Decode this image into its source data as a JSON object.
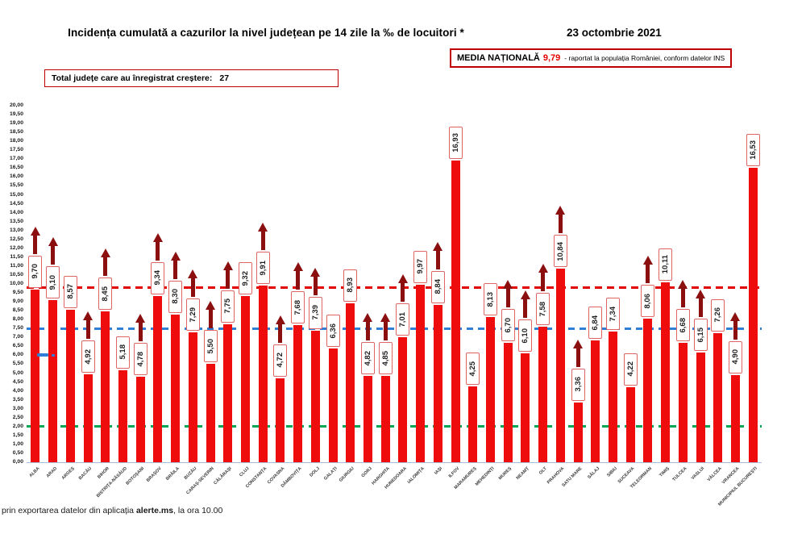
{
  "header": {
    "title": "Incidența cumulată a cazurilor la nivel județean pe 14 zile la ‰ de locuitori *",
    "date": "23 octombrie 2021",
    "national_average": {
      "label": "MEDIA NAȚIONALĂ",
      "value": "9,79",
      "note": "-  raportat la populația României, conform datelor INS"
    },
    "increase_total": {
      "label": "Total județe care au înregistrat creștere:",
      "value": "27"
    }
  },
  "footer": {
    "prefix": "prin exportarea datelor din aplicația ",
    "app_name": "alerte.ms",
    "suffix": ", la ora 10.00"
  },
  "chart_data": {
    "type": "bar",
    "title": "Incidența cumulată a cazurilor la nivel județean pe 14 zile la ‰ de locuitori",
    "ylabel": "",
    "xlabel": "",
    "ylim": [
      0,
      20
    ],
    "ytick_step": 0.5,
    "grid": false,
    "legend_position": "none",
    "bar_color": "#ee0c0c",
    "categories": [
      "ALBA",
      "ARAD",
      "ARGEȘ",
      "BACĂU",
      "BIHOR",
      "BISTRIȚA-NĂSĂUD",
      "BOTOȘANI",
      "BRAȘOV",
      "BRĂILA",
      "BUZĂU",
      "CARAȘ-SEVERIN",
      "CĂLĂRAȘI",
      "CLUJ",
      "CONSTANȚA",
      "COVASNA",
      "DÂMBOVIȚA",
      "DOLJ",
      "GALAȚI",
      "GIURGIU",
      "GORJ",
      "HARGHITA",
      "HUNEDOARA",
      "IALOMIȚA",
      "IAȘI",
      "ILFOV",
      "MARAMUREȘ",
      "MEHEDINȚI",
      "MUREȘ",
      "NEAMȚ",
      "OLT",
      "PRAHOVA",
      "SATU MARE",
      "SĂLAJ",
      "SIBIU",
      "SUCEAVA",
      "TELEORMAN",
      "TIMIȘ",
      "TULCEA",
      "VASLUI",
      "VÂLCEA",
      "VRANCEA",
      "MUNICIPIUL BUCUREȘTI"
    ],
    "values": [
      9.7,
      9.1,
      8.57,
      4.92,
      8.45,
      5.18,
      4.78,
      9.34,
      8.3,
      7.29,
      5.5,
      7.75,
      9.32,
      9.91,
      4.72,
      7.68,
      7.39,
      6.36,
      8.93,
      4.82,
      4.85,
      7.01,
      9.97,
      8.84,
      16.93,
      4.25,
      8.13,
      6.7,
      6.1,
      7.58,
      10.84,
      3.36,
      6.84,
      7.34,
      4.22,
      8.06,
      10.11,
      6.68,
      6.15,
      7.26,
      4.9,
      16.53
    ],
    "value_labels": [
      "9,70",
      "9,10",
      "8,57",
      "4,92",
      "8,45",
      "5,18",
      "4,78",
      "9,34",
      "8,30",
      "7,29",
      "5,50",
      "7,75",
      "9,32",
      "9,91",
      "4,72",
      "7,68",
      "7,39",
      "6,36",
      "8,93",
      "4,82",
      "4,85",
      "7,01",
      "9,97",
      "8,84",
      "16,93",
      "4,25",
      "8,13",
      "6,70",
      "6,10",
      "7,58",
      "10,84",
      "3,36",
      "6,84",
      "7,34",
      "4,22",
      "8,06",
      "10,11",
      "6,68",
      "6,15",
      "7,26",
      "4,90",
      "16,53"
    ],
    "increase_arrow": [
      true,
      true,
      false,
      true,
      true,
      false,
      true,
      true,
      true,
      true,
      true,
      true,
      false,
      true,
      true,
      true,
      true,
      false,
      false,
      true,
      true,
      true,
      false,
      true,
      false,
      false,
      false,
      true,
      true,
      true,
      true,
      true,
      false,
      false,
      false,
      true,
      false,
      true,
      true,
      false,
      true,
      false
    ],
    "reference_lines": [
      {
        "name": "media-nationala",
        "value": 9.79,
        "color": "#e30000",
        "style": "dashed"
      },
      {
        "name": "reference-7-50",
        "value": 7.5,
        "color": "#2f7ed8",
        "style": "dashed"
      },
      {
        "name": "reference-2-00",
        "value": 2.0,
        "color": "#00a651",
        "style": "dashed"
      }
    ]
  },
  "colors": {
    "bar": "#ee0c0c",
    "value_box_border": "#e06666",
    "arrow": "#8b0f0f",
    "header_box_border": "#c00000",
    "national_average_value": "#e30000"
  }
}
